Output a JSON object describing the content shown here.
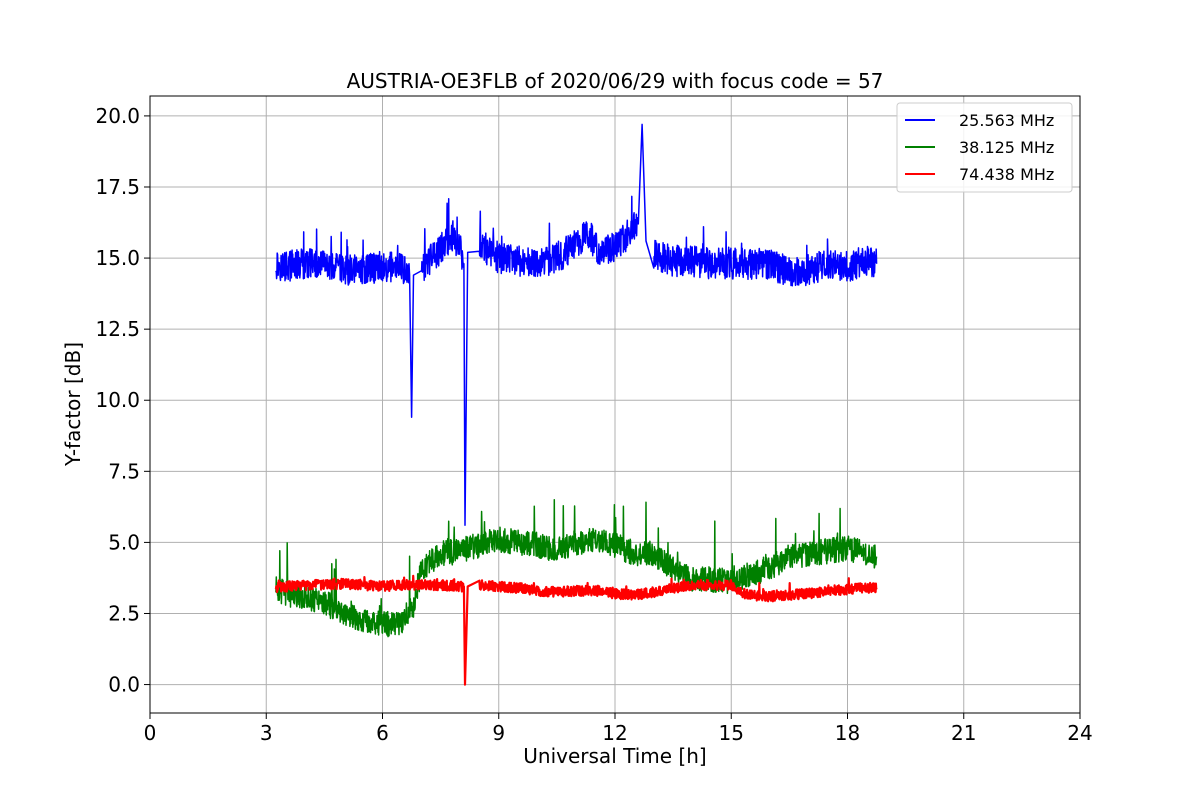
{
  "chart_data": {
    "type": "line",
    "title": "AUSTRIA-OE3FLB of 2020/06/29 with focus code = 57",
    "xlabel": "Universal Time [h]",
    "ylabel": "Y-factor [dB]",
    "xlim": [
      0,
      24
    ],
    "ylim": [
      -1.0,
      20.7
    ],
    "xticks": [
      0,
      3,
      6,
      9,
      12,
      15,
      18,
      21,
      24
    ],
    "xtick_labels": [
      "0",
      "3",
      "6",
      "9",
      "12",
      "15",
      "18",
      "21",
      "24"
    ],
    "yticks": [
      0,
      2.5,
      5,
      7.5,
      10,
      12.5,
      15,
      17.5,
      20
    ],
    "ytick_labels": [
      "0.0",
      "2.5",
      "5.0",
      "7.5",
      "10.0",
      "12.5",
      "15.0",
      "17.5",
      "20.0"
    ],
    "grid": true,
    "legend_position": "top-right",
    "series": [
      {
        "name": "25.563 MHz",
        "color": "#0000ff",
        "x": [
          3.25,
          3.5,
          4.0,
          4.5,
          5.0,
          5.5,
          6.0,
          6.5,
          6.7,
          6.75,
          6.8,
          7.0,
          7.5,
          7.8,
          8.0,
          8.1,
          8.13,
          8.2,
          8.5,
          9.0,
          9.5,
          10.0,
          10.5,
          11.0,
          11.3,
          11.6,
          12.0,
          12.3,
          12.6,
          12.7,
          12.8,
          13.0,
          13.5,
          14.0,
          14.5,
          15.0,
          15.5,
          16.0,
          16.5,
          17.0,
          17.5,
          18.0,
          18.5,
          18.75
        ],
        "y": [
          14.8,
          14.7,
          14.8,
          14.7,
          14.6,
          14.6,
          14.7,
          14.6,
          14.4,
          9.4,
          14.4,
          14.6,
          15.3,
          15.8,
          15.4,
          14.8,
          5.6,
          15.2,
          15.5,
          15.0,
          14.9,
          14.8,
          15.0,
          15.5,
          15.9,
          15.2,
          15.4,
          15.8,
          16.2,
          19.7,
          15.6,
          15.1,
          14.9,
          14.9,
          14.8,
          14.8,
          14.8,
          14.8,
          14.5,
          14.6,
          14.8,
          14.7,
          14.9,
          14.8
        ]
      },
      {
        "name": "38.125 MHz",
        "color": "#008000",
        "x": [
          3.25,
          3.5,
          4.0,
          4.5,
          5.0,
          5.5,
          6.0,
          6.5,
          6.8,
          7.0,
          7.5,
          8.0,
          8.5,
          9.0,
          9.5,
          10.0,
          10.5,
          11.0,
          11.5,
          12.0,
          12.5,
          13.0,
          13.5,
          14.0,
          14.5,
          15.0,
          15.5,
          16.0,
          16.5,
          17.0,
          17.5,
          18.0,
          18.5,
          18.75
        ],
        "y": [
          3.4,
          3.2,
          3.1,
          2.9,
          2.5,
          2.3,
          2.1,
          2.2,
          2.8,
          4.0,
          4.6,
          4.7,
          4.9,
          5.1,
          5.0,
          4.9,
          4.7,
          5.0,
          5.1,
          4.9,
          4.6,
          4.6,
          4.1,
          3.7,
          3.7,
          3.6,
          3.9,
          4.1,
          4.5,
          4.6,
          4.7,
          4.8,
          4.6,
          4.5
        ]
      },
      {
        "name": "74.438 MHz",
        "color": "#ff0000",
        "x": [
          3.25,
          3.5,
          4.0,
          4.5,
          5.0,
          5.5,
          6.0,
          6.5,
          7.0,
          7.5,
          8.0,
          8.1,
          8.13,
          8.2,
          8.5,
          9.0,
          9.5,
          10.0,
          10.5,
          11.0,
          11.5,
          12.0,
          12.5,
          13.0,
          13.5,
          14.0,
          14.5,
          15.0,
          15.3,
          15.5,
          16.0,
          16.5,
          17.0,
          17.5,
          18.0,
          18.5,
          18.75
        ],
        "y": [
          3.4,
          3.45,
          3.5,
          3.5,
          3.55,
          3.5,
          3.45,
          3.5,
          3.5,
          3.5,
          3.45,
          3.45,
          0.0,
          3.45,
          3.5,
          3.45,
          3.4,
          3.3,
          3.25,
          3.3,
          3.3,
          3.2,
          3.15,
          3.25,
          3.4,
          3.5,
          3.5,
          3.5,
          3.2,
          3.15,
          3.1,
          3.15,
          3.2,
          3.3,
          3.35,
          3.4,
          3.4
        ]
      }
    ]
  }
}
